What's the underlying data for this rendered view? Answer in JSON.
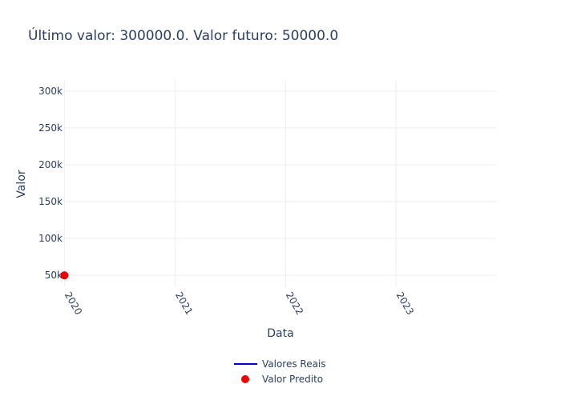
{
  "chart_data": {
    "type": "scatter",
    "title": "Último valor: 300000.0. Valor futuro: 50000.0",
    "xlabel": "Data",
    "ylabel": "Valor",
    "x_ticks": [
      "2020",
      "2021",
      "2022",
      "2023"
    ],
    "y_ticks": [
      "50k",
      "100k",
      "150k",
      "200k",
      "250k",
      "300k"
    ],
    "xlim": [
      "2019-12-31",
      "2023-11-30"
    ],
    "ylim": [
      35000,
      315000
    ],
    "grid": true,
    "legend_position": "bottom-center",
    "series": [
      {
        "name": "Valores Reais",
        "mode": "lines",
        "color": "#0000cc",
        "x": [],
        "y": []
      },
      {
        "name": "Valor Predito",
        "mode": "markers",
        "color": "#ee0000",
        "x": [
          "2020-01-01"
        ],
        "y": [
          50000
        ]
      }
    ]
  }
}
